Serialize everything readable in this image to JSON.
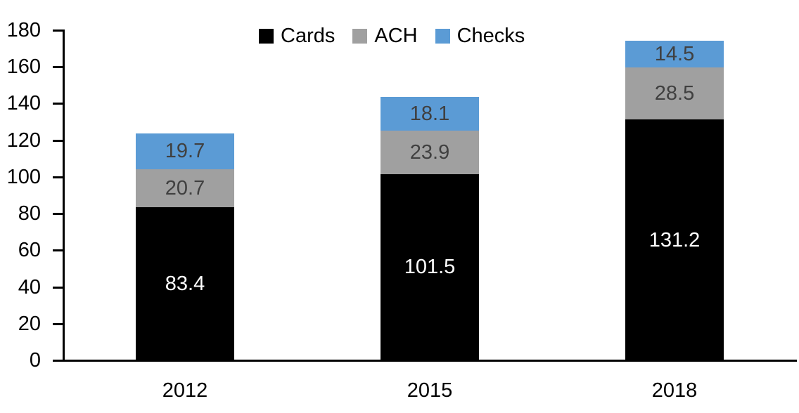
{
  "chart_data": {
    "type": "bar",
    "stacked": true,
    "title": "",
    "xlabel": "",
    "ylabel": "",
    "categories": [
      "2012",
      "2015",
      "2018"
    ],
    "series": [
      {
        "name": "Cards",
        "color": "#000000",
        "label_color": "#ffffff",
        "values": [
          83.4,
          101.5,
          131.2
        ]
      },
      {
        "name": "ACH",
        "color": "#a0a0a0",
        "label_color": "#404040",
        "values": [
          20.7,
          23.9,
          28.5
        ]
      },
      {
        "name": "Checks",
        "color": "#5b9bd5",
        "label_color": "#404040",
        "values": [
          19.7,
          18.1,
          14.5
        ]
      }
    ],
    "totals": [
      123.8,
      143.5,
      174.2
    ],
    "ylim": [
      0,
      180
    ],
    "yticks": [
      0,
      20,
      40,
      60,
      80,
      100,
      120,
      140,
      160,
      180
    ],
    "grid": false,
    "legend_position": "top-center",
    "legend_entries": [
      "Cards",
      "ACH",
      "Checks"
    ],
    "axis_color": "#000000",
    "background_color": "#ffffff"
  }
}
